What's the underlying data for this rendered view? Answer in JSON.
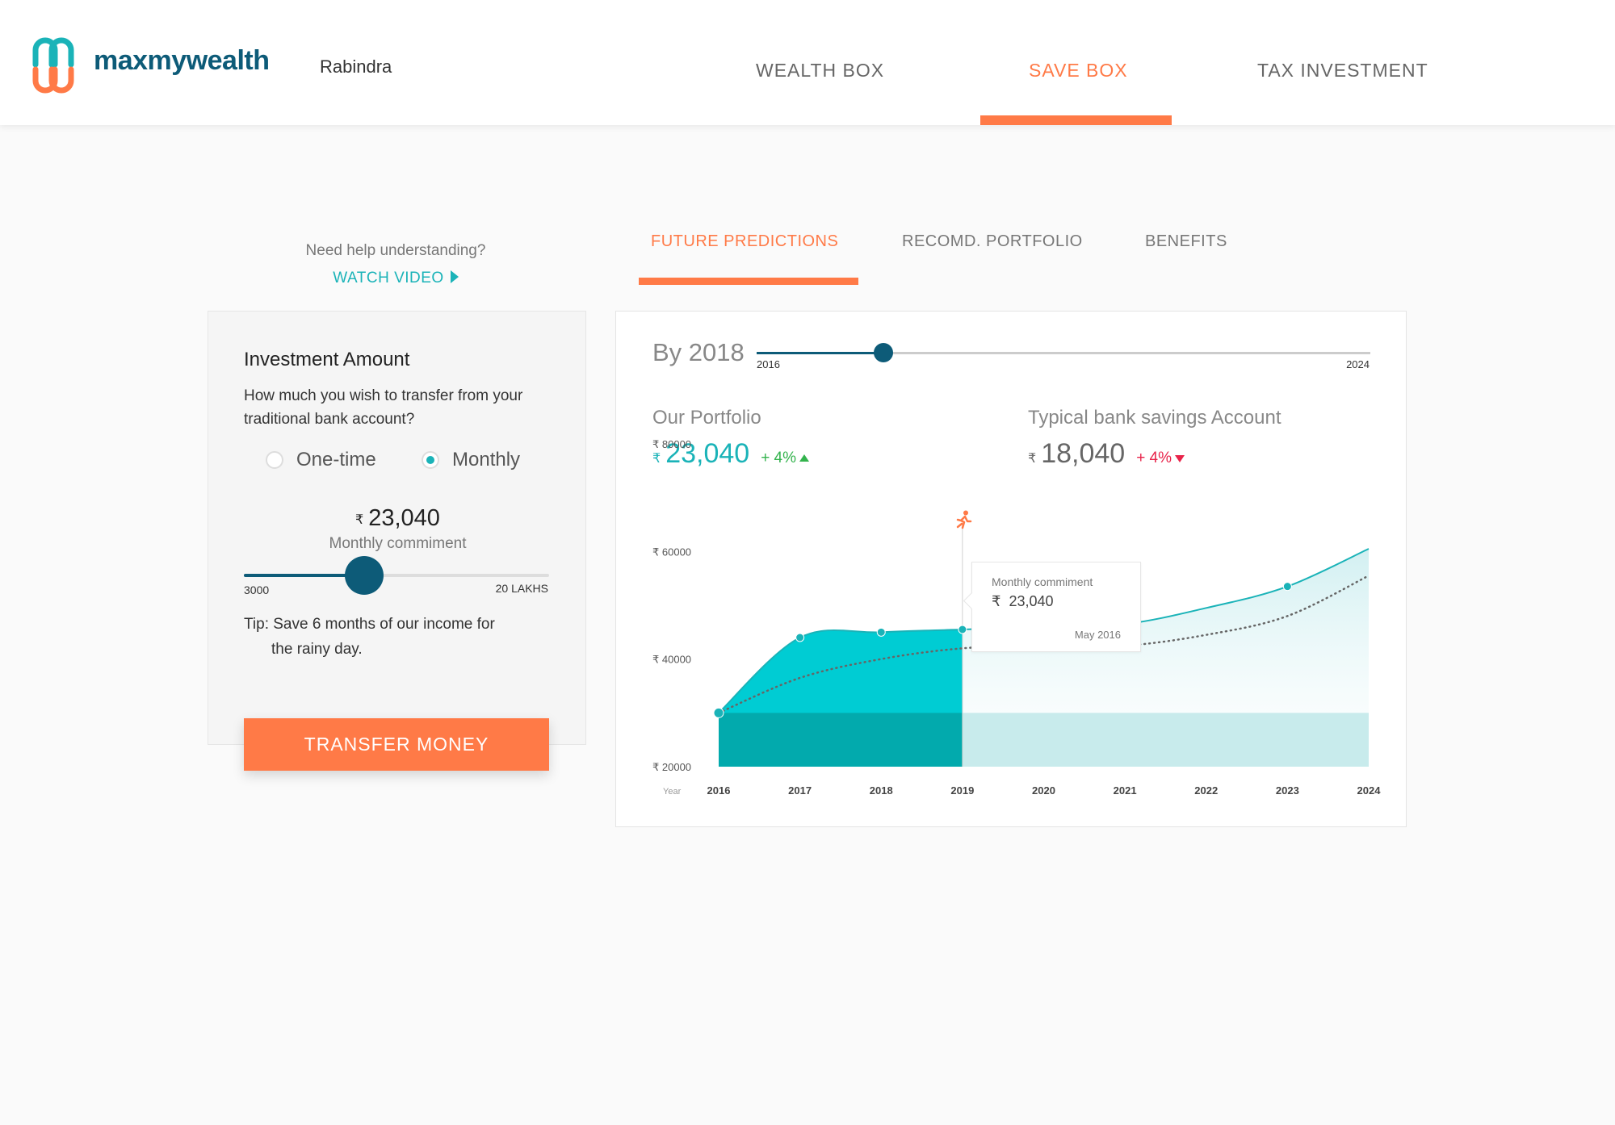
{
  "header": {
    "logo_text": "maxmywealth",
    "user_name": "Rabindra",
    "nav": [
      {
        "label": "WEALTH BOX",
        "active": false
      },
      {
        "label": "SAVE BOX",
        "active": true
      },
      {
        "label": "TAX INVESTMENT",
        "active": false
      }
    ],
    "accent_color": "#ff7a47",
    "brand_color": "#0d5b78"
  },
  "help": {
    "question": "Need help understanding?",
    "watch_video": "WATCH VIDEO",
    "icon": "play-icon"
  },
  "tabs": [
    {
      "label": "FUTURE PREDICTIONS",
      "active": true
    },
    {
      "label": "RECOMD. PORTFOLIO",
      "active": false
    },
    {
      "label": "BENEFITS",
      "active": false
    }
  ],
  "investment": {
    "title": "Investment Amount",
    "subtitle": "How much you wish to transfer from your traditional bank account?",
    "options": [
      {
        "label": "One-time",
        "checked": false
      },
      {
        "label": "Monthly",
        "checked": true
      }
    ],
    "currency": "₹",
    "amount": "23,040",
    "amount_label": "Monthly commiment",
    "slider": {
      "min_label": "3000",
      "max_label": "20 LAKHS",
      "fraction": 0.395
    },
    "tip_line1": "Tip: Save 6 months of our income for",
    "tip_line2": "the rainy day.",
    "transfer_button": "TRANSFER MONEY"
  },
  "prediction": {
    "by_label": "By 2018",
    "year_slider": {
      "min_label": "2016",
      "max_label": "2024",
      "fraction": 0.206
    },
    "portfolio": {
      "label": "Our Portfolio",
      "currency": "₹",
      "value": "23,040",
      "change": "+ 4%",
      "direction": "up",
      "color": "#1ab3b8"
    },
    "bank": {
      "label": "Typical bank savings Account",
      "currency": "₹",
      "value": "18,040",
      "change": "+ 4%",
      "direction": "down"
    },
    "tooltip": {
      "label": "Monthly commiment",
      "currency": "₹",
      "value": "23,040",
      "date": "May 2016"
    }
  },
  "chart_data": {
    "type": "area",
    "x": [
      2016,
      2017,
      2018,
      2019,
      2020,
      2021,
      2022,
      2023,
      2024
    ],
    "xlabel": "Year",
    "currency": "₹",
    "yticks": [
      20000,
      40000,
      60000,
      80000
    ],
    "ylim": [
      20000,
      80000
    ],
    "series": [
      {
        "values": [
          30000,
          44000,
          45000,
          45500,
          46000,
          46500,
          49500,
          53500,
          60500
        ],
        "color": "#1ab3b8"
      },
      {
        "values": [
          30000,
          36500,
          40000,
          42000,
          42500,
          42500,
          44500,
          48000,
          55500
        ],
        "color": "#666666",
        "style": "dotted"
      }
    ],
    "highlight_until": 2019,
    "grid": false,
    "legend": "none"
  }
}
